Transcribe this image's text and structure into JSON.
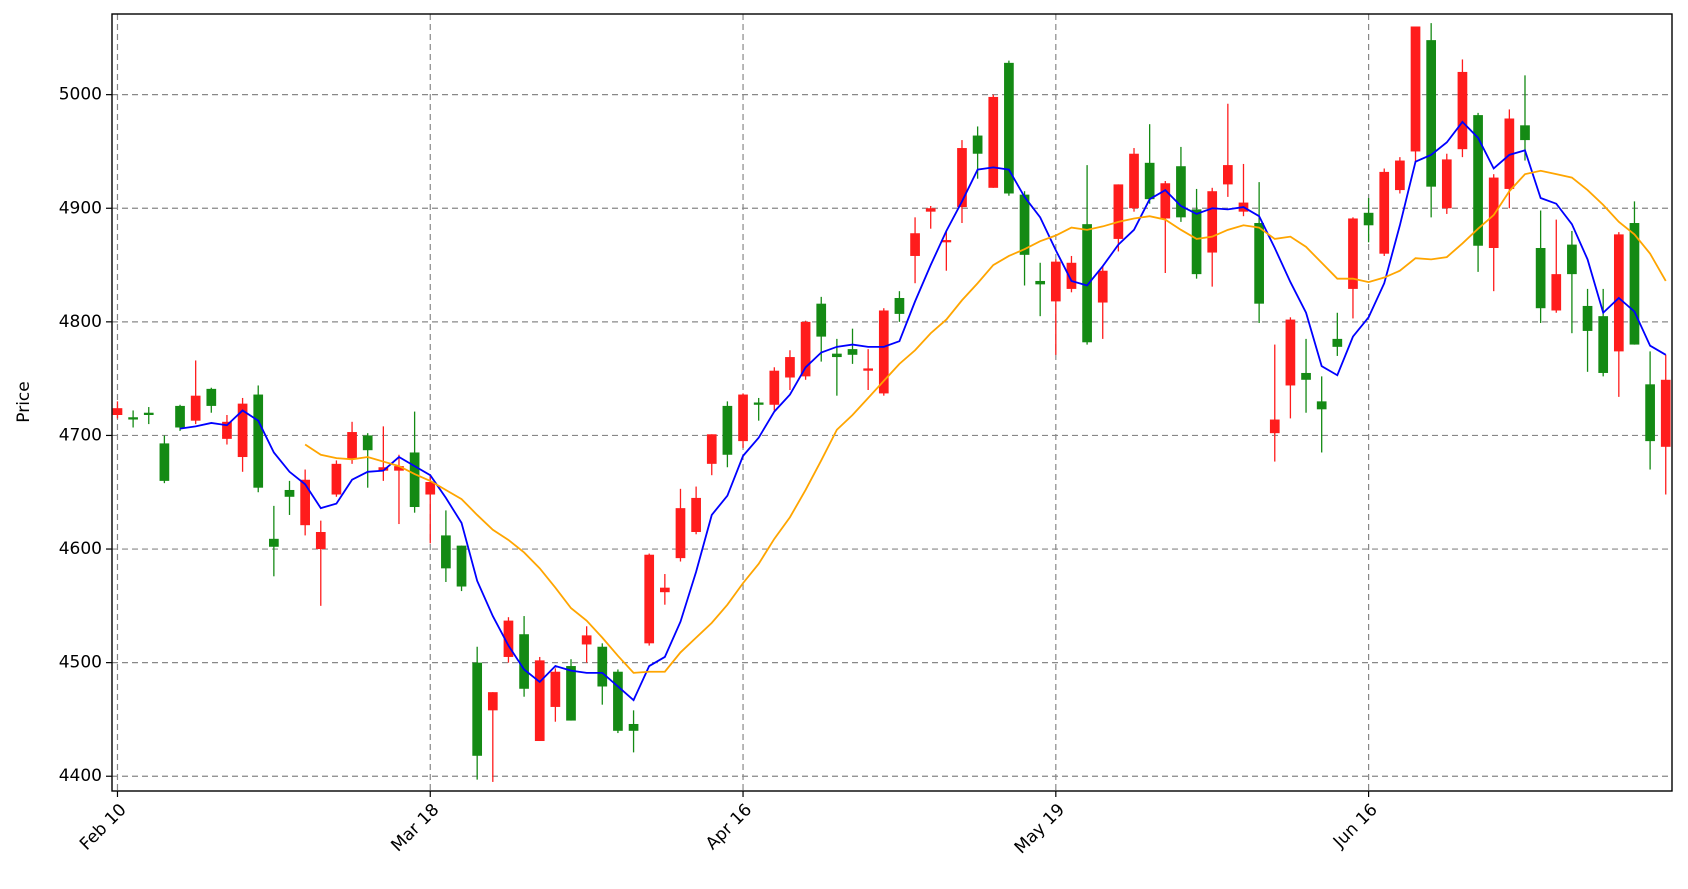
{
  "chart_data": {
    "type": "candlestick",
    "ylabel": "Price",
    "categories": [
      "Feb 10",
      null,
      null,
      null,
      null,
      null,
      null,
      null,
      null,
      null,
      null,
      null,
      null,
      null,
      null,
      null,
      null,
      null,
      null,
      null,
      "Mar 18",
      null,
      null,
      null,
      null,
      null,
      null,
      null,
      null,
      null,
      null,
      null,
      null,
      null,
      null,
      null,
      null,
      null,
      null,
      null,
      "Apr 16",
      null,
      null,
      null,
      null,
      null,
      null,
      null,
      null,
      null,
      null,
      null,
      null,
      null,
      null,
      null,
      null,
      null,
      null,
      null,
      "May 19",
      null,
      null,
      null,
      null,
      null,
      null,
      null,
      null,
      null,
      null,
      null,
      null,
      null,
      null,
      null,
      null,
      null,
      null,
      null,
      "Jun 16",
      null,
      null,
      null,
      null,
      null,
      null,
      null,
      null,
      null,
      null,
      null,
      null,
      null,
      null,
      null,
      null,
      null,
      null,
      null
    ],
    "open": [
      4724,
      4714,
      4718,
      4660,
      4707,
      4735,
      4726,
      4712,
      4728,
      4654,
      4602,
      4646,
      4661,
      4615,
      4675,
      4703,
      4687,
      4672,
      4673,
      4637,
      4659,
      4583,
      4567,
      4418,
      4474,
      4537,
      4477,
      4502,
      4492,
      4449,
      4524,
      4479,
      4440,
      4440,
      4595,
      4566,
      4636,
      4645,
      4701,
      4683,
      4736,
      4727,
      4757,
      4769,
      4800,
      4787,
      4769,
      4771,
      4759,
      4810,
      4807,
      4878,
      4900,
      4872,
      4953,
      4948,
      4998,
      4913,
      4859,
      4833,
      4853,
      4852,
      4782,
      4845,
      4921,
      4948,
      4908,
      4922,
      4892,
      4842,
      4915,
      4938,
      4905,
      4816,
      4714,
      4802,
      4749,
      4723,
      4778,
      4891,
      4885,
      4932,
      4942,
      5060,
      4919,
      4943,
      5020,
      4867,
      4927,
      4979,
      4960,
      4812,
      4842,
      4842,
      4792,
      4755,
      4877,
      4780,
      4695,
      4749
    ],
    "high": [
      4730,
      4722,
      4725,
      4700,
      4727,
      4766,
      4742,
      4718,
      4733,
      4744,
      4638,
      4660,
      4670,
      4625,
      4678,
      4712,
      4702,
      4708,
      4683,
      4721,
      4665,
      4634,
      4603,
      4514,
      4474,
      4540,
      4541,
      4505,
      4495,
      4503,
      4532,
      4517,
      4494,
      4458,
      4596,
      4578,
      4653,
      4655,
      4701,
      4730,
      4737,
      4733,
      4760,
      4775,
      4801,
      4822,
      4785,
      4794,
      4776,
      4812,
      4827,
      4892,
      4902,
      4880,
      4960,
      4972,
      5000,
      5030,
      4915,
      4852,
      4855,
      4858,
      4938,
      4849,
      4921,
      4953,
      4974,
      4924,
      4954,
      4917,
      4918,
      4992,
      4939,
      4923,
      4780,
      4804,
      4785,
      4752,
      4808,
      4892,
      4909,
      4935,
      4945,
      5060,
      5063,
      4948,
      5031,
      4984,
      4930,
      4987,
      5017,
      4898,
      4890,
      4880,
      4829,
      4829,
      4879,
      4906,
      4774,
      4771
    ],
    "low": [
      4715,
      4707,
      4710,
      4658,
      4704,
      4710,
      4720,
      4692,
      4668,
      4650,
      4576,
      4630,
      4612,
      4550,
      4646,
      4675,
      4654,
      4660,
      4622,
      4632,
      4605,
      4571,
      4563,
      4397,
      4395,
      4500,
      4470,
      4431,
      4448,
      4449,
      4500,
      4463,
      4438,
      4421,
      4515,
      4551,
      4589,
      4613,
      4665,
      4672,
      4689,
      4713,
      4722,
      4740,
      4749,
      4765,
      4735,
      4763,
      4740,
      4735,
      4800,
      4834,
      4882,
      4845,
      4887,
      4926,
      4918,
      4911,
      4832,
      4805,
      4771,
      4826,
      4780,
      4785,
      4862,
      4897,
      4904,
      4843,
      4888,
      4838,
      4831,
      4910,
      4893,
      4799,
      4677,
      4715,
      4720,
      4685,
      4770,
      4803,
      4870,
      4858,
      4913,
      4940,
      4892,
      4895,
      4945,
      4844,
      4827,
      4900,
      4942,
      4799,
      4808,
      4790,
      4756,
      4752,
      4734,
      4780,
      4670,
      4648
    ],
    "close": [
      4718,
      4716,
      4720,
      4693,
      4726,
      4713,
      4741,
      4697,
      4681,
      4736,
      4609,
      4652,
      4621,
      4600,
      4648,
      4679,
      4700,
      4669,
      4669,
      4685,
      4648,
      4612,
      4603,
      4500,
      4458,
      4505,
      4525,
      4431,
      4461,
      4497,
      4516,
      4514,
      4492,
      4446,
      4517,
      4562,
      4592,
      4615,
      4675,
      4726,
      4695,
      4729,
      4727,
      4751,
      4752,
      4816,
      4772,
      4776,
      4757,
      4737,
      4821,
      4858,
      4897,
      4870,
      4901,
      4964,
      4918,
      5028,
      4912,
      4836,
      4818,
      4829,
      4886,
      4817,
      4873,
      4900,
      4940,
      4891,
      4937,
      4899,
      4861,
      4921,
      4897,
      4887,
      4702,
      4744,
      4755,
      4730,
      4785,
      4829,
      4896,
      4860,
      4916,
      4950,
      5048,
      4900,
      4952,
      4982,
      4865,
      4917,
      4973,
      4865,
      4810,
      4868,
      4814,
      4805,
      4774,
      4887,
      4745,
      4690
    ],
    "up_color": "#148a14",
    "down_color": "#ff1c1c",
    "overlays": [
      {
        "color": "#0000ff",
        "values": [
          null,
          null,
          null,
          null,
          4706,
          4708,
          4711,
          4709,
          4722,
          4713,
          4685,
          4668,
          4657,
          4636,
          4640,
          4661,
          4668,
          4669,
          4681,
          4673,
          4665,
          4645,
          4623,
          4572,
          4541,
          4515,
          4494,
          4483,
          4497,
          4493,
          4491,
          4491,
          4479,
          4467,
          4497,
          4505,
          4536,
          4580,
          4630,
          4647,
          4682,
          4698,
          4721,
          4736,
          4760,
          4773,
          4778,
          4780,
          4778,
          4778,
          4783,
          4818,
          4850,
          4880,
          4906,
          4934,
          4936,
          4934,
          4910,
          4892,
          4863,
          4836,
          4832,
          4849,
          4868,
          4881,
          4908,
          4916,
          4902,
          4895,
          4900,
          4899,
          4901,
          4893,
          4865,
          4835,
          4808,
          4761,
          4753,
          4787,
          4804,
          4834,
          4885,
          4941,
          4947,
          4958,
          4976,
          4962,
          4935,
          4947,
          4951,
          4909,
          4904,
          4886,
          4855,
          4808,
          4821,
          4809,
          4779,
          4771
        ]
      },
      {
        "color": "#ffa500",
        "values": [
          null,
          null,
          null,
          null,
          null,
          null,
          null,
          null,
          null,
          null,
          null,
          null,
          4692,
          4683,
          4680,
          4679,
          4681,
          4677,
          4673,
          4666,
          4660,
          4652,
          4644,
          4630,
          4617,
          4608,
          4597,
          4583,
          4566,
          4548,
          4537,
          4522,
          4506,
          4491,
          4492,
          4492,
          4509,
          4522,
          4535,
          4551,
          4570,
          4587,
          4609,
          4628,
          4652,
          4678,
          4705,
          4718,
          4733,
          4748,
          4763,
          4775,
          4790,
          4802,
          4819,
          4834,
          4850,
          4858,
          4864,
          4871,
          4876,
          4883,
          4881,
          4884,
          4888,
          4891,
          4893,
          4890,
          4881,
          4873,
          4875,
          4881,
          4885,
          4883,
          4873,
          4875,
          4866,
          4852,
          4838,
          4838,
          4835,
          4839,
          4845,
          4856,
          4855,
          4857,
          4869,
          4882,
          4894,
          4915,
          4930,
          4933,
          4930,
          4927,
          4916,
          4903,
          4888,
          4877,
          4860,
          4836
        ]
      }
    ],
    "xlim": [
      -0.35,
      99.4
    ],
    "ylim": [
      4387,
      5071
    ],
    "yticks": [
      4400,
      4500,
      4600,
      4700,
      4800,
      4900,
      5000
    ],
    "grid": true
  }
}
